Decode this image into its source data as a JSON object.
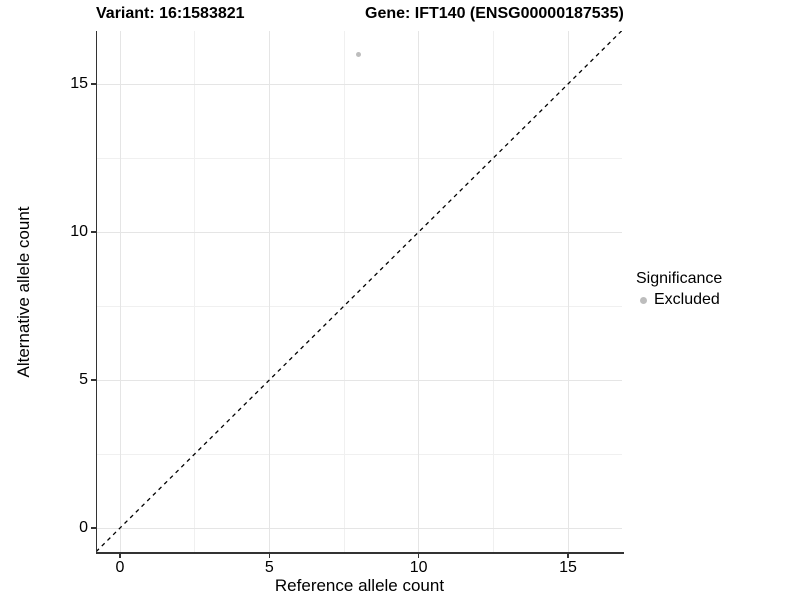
{
  "title": {
    "variant": "Variant: 16:1583821",
    "gene": "Gene: IFT140 (ENSG00000187535)"
  },
  "axes": {
    "x": {
      "label": "Reference allele count",
      "ticks": [
        0,
        5,
        10,
        15
      ],
      "minor_ticks": [
        2.5,
        7.5,
        12.5
      ]
    },
    "y": {
      "label": "Alternative allele count",
      "ticks": [
        0,
        5,
        10,
        15
      ],
      "minor_ticks": [
        2.5,
        7.5,
        12.5
      ]
    }
  },
  "legend": {
    "title": "Significance",
    "items": [
      {
        "label": "Excluded",
        "color": "#bdbdbd"
      }
    ]
  },
  "colors": {
    "point": "#bdbdbd",
    "grid_major": "#e5e5e5",
    "grid_minor": "#f0f0f0",
    "axis": "#333333",
    "reference_line": "#000000",
    "text": "#000000"
  },
  "chart_data": {
    "type": "scatter",
    "title": "Variant: 16:1583821   Gene: IFT140 (ENSG00000187535)",
    "xlabel": "Reference allele count",
    "ylabel": "Alternative allele count",
    "xlim": [
      -0.8,
      16.8
    ],
    "ylim": [
      -0.8,
      16.8
    ],
    "x_ticks": [
      0,
      5,
      10,
      15
    ],
    "y_ticks": [
      0,
      5,
      10,
      15
    ],
    "grid": "major+minor",
    "legend_position": "right",
    "series": [
      {
        "name": "Excluded",
        "color": "#bdbdbd",
        "points": [
          {
            "x": 8,
            "y": 16
          }
        ]
      }
    ],
    "reference_line": {
      "type": "identity",
      "style": "dashed",
      "from": [
        -0.8,
        -0.8
      ],
      "to": [
        16.8,
        16.8
      ]
    }
  }
}
